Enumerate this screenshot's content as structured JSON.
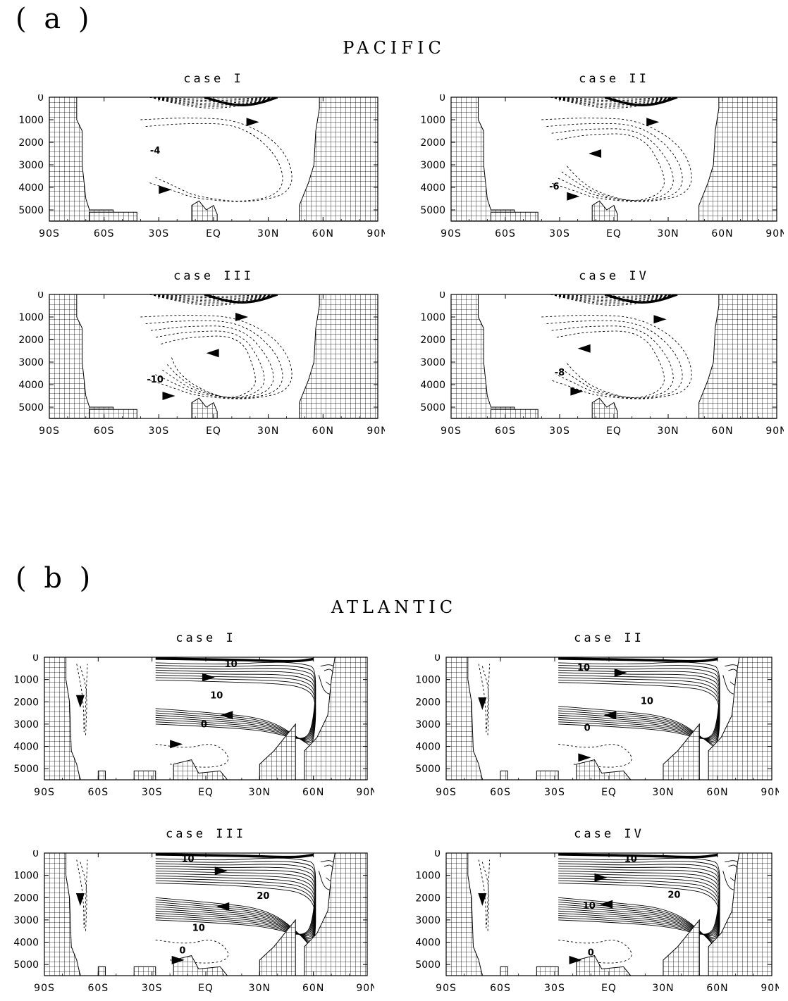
{
  "sections": [
    {
      "label": "( a )",
      "title": "PACIFIC"
    },
    {
      "label": "( b )",
      "title": "ATLANTIC"
    }
  ],
  "colors": {
    "land_hatch": "#000000",
    "background": "#ffffff",
    "positive_contour": "#000000",
    "negative_contour": "#000000"
  },
  "chart_data": [
    {
      "type": "contour",
      "basin": "PACIFIC",
      "title": "case I",
      "x_ticks": [
        "90S",
        "60S",
        "30S",
        "EQ",
        "30N",
        "60N",
        "90N"
      ],
      "y_ticks": [
        "0",
        "1000",
        "2000",
        "3000",
        "4000",
        "5000"
      ],
      "xlim": [
        -90,
        90
      ],
      "ylim": [
        5500,
        0
      ],
      "contour_labels": [
        {
          "text": "-4",
          "lat": -32,
          "depth": 2500
        }
      ],
      "arrows": [
        {
          "lat": 18,
          "depth": 1100,
          "dir": "right"
        },
        {
          "lat": -30,
          "depth": 4100,
          "dir": "right"
        }
      ]
    },
    {
      "type": "contour",
      "basin": "PACIFIC",
      "title": "case II",
      "x_ticks": [
        "90S",
        "60S",
        "30S",
        "EQ",
        "30N",
        "60N",
        "90N"
      ],
      "y_ticks": [
        "0",
        "1000",
        "2000",
        "3000",
        "4000",
        "5000"
      ],
      "xlim": [
        -90,
        90
      ],
      "ylim": [
        5500,
        0
      ],
      "contour_labels": [
        {
          "text": "-6",
          "lat": -33,
          "depth": 4100
        }
      ],
      "arrows": [
        {
          "lat": 18,
          "depth": 1100,
          "dir": "right"
        },
        {
          "lat": -14,
          "depth": 2500,
          "dir": "left"
        },
        {
          "lat": -26,
          "depth": 4400,
          "dir": "right"
        }
      ]
    },
    {
      "type": "contour",
      "basin": "PACIFIC",
      "title": "case III",
      "x_ticks": [
        "90S",
        "60S",
        "30S",
        "EQ",
        "30N",
        "60N",
        "90N"
      ],
      "y_ticks": [
        "0",
        "1000",
        "2000",
        "3000",
        "4000",
        "5000"
      ],
      "xlim": [
        -90,
        90
      ],
      "ylim": [
        5500,
        0
      ],
      "contour_labels": [
        {
          "text": "-10",
          "lat": -32,
          "depth": 3900
        }
      ],
      "arrows": [
        {
          "lat": 12,
          "depth": 1000,
          "dir": "right"
        },
        {
          "lat": -4,
          "depth": 2600,
          "dir": "left"
        },
        {
          "lat": -28,
          "depth": 4500,
          "dir": "right"
        }
      ]
    },
    {
      "type": "contour",
      "basin": "PACIFIC",
      "title": "case IV",
      "x_ticks": [
        "90S",
        "60S",
        "30S",
        "EQ",
        "30N",
        "60N",
        "90N"
      ],
      "y_ticks": [
        "0",
        "1000",
        "2000",
        "3000",
        "4000",
        "5000"
      ],
      "xlim": [
        -90,
        90
      ],
      "ylim": [
        5500,
        0
      ],
      "contour_labels": [
        {
          "text": "-8",
          "lat": -30,
          "depth": 3600
        }
      ],
      "arrows": [
        {
          "lat": 22,
          "depth": 1100,
          "dir": "right"
        },
        {
          "lat": -20,
          "depth": 2400,
          "dir": "left"
        },
        {
          "lat": -24,
          "depth": 4300,
          "dir": "right"
        }
      ]
    },
    {
      "type": "contour",
      "basin": "ATLANTIC",
      "title": "case I",
      "x_ticks": [
        "90S",
        "60S",
        "30S",
        "EQ",
        "30N",
        "60N",
        "90N"
      ],
      "y_ticks": [
        "0",
        "1000",
        "2000",
        "3000",
        "4000",
        "5000"
      ],
      "xlim": [
        -90,
        90
      ],
      "ylim": [
        5500,
        0
      ],
      "contour_labels": [
        {
          "text": "10",
          "lat": 14,
          "depth": 450
        },
        {
          "text": "10",
          "lat": 6,
          "depth": 1850
        },
        {
          "text": "0",
          "lat": -1,
          "depth": 3150
        }
      ],
      "arrows": [
        {
          "lat": -2,
          "depth": 900,
          "dir": "right"
        },
        {
          "lat": -70,
          "depth": 1700,
          "dir": "down"
        },
        {
          "lat": 8,
          "depth": 2600,
          "dir": "left"
        },
        {
          "lat": -20,
          "depth": 3900,
          "dir": "right"
        }
      ]
    },
    {
      "type": "contour",
      "basin": "ATLANTIC",
      "title": "case II",
      "x_ticks": [
        "90S",
        "60S",
        "30S",
        "EQ",
        "30N",
        "60N",
        "90N"
      ],
      "y_ techs": [],
      "y_ticks": [
        "0",
        "1000",
        "2000",
        "3000",
        "4000",
        "5000"
      ],
      "xlim": [
        -90,
        90
      ],
      "ylim": [
        5500,
        0
      ],
      "contour_labels": [
        {
          "text": "10",
          "lat": -14,
          "depth": 600
        },
        {
          "text": "10",
          "lat": 21,
          "depth": 2100
        },
        {
          "text": "0",
          "lat": -12,
          "depth": 3300
        }
      ],
      "arrows": [
        {
          "lat": 3,
          "depth": 700,
          "dir": "right"
        },
        {
          "lat": -70,
          "depth": 1800,
          "dir": "down"
        },
        {
          "lat": -3,
          "depth": 2600,
          "dir": "left"
        },
        {
          "lat": -17,
          "depth": 4500,
          "dir": "right"
        }
      ]
    },
    {
      "type": "contour",
      "basin": "ATLANTIC",
      "title": "case III",
      "x_ticks": [
        "90S",
        "60S",
        "30S",
        "EQ",
        "30N",
        "60N",
        "90N"
      ],
      "y_ticks": [
        "0",
        "1000",
        "2000",
        "3000",
        "4000",
        "5000"
      ],
      "xlim": [
        -90,
        90
      ],
      "ylim": [
        5500,
        0
      ],
      "contour_labels": [
        {
          "text": "10",
          "lat": -10,
          "depth": 400
        },
        {
          "text": "20",
          "lat": 32,
          "depth": 2050
        },
        {
          "text": "10",
          "lat": -4,
          "depth": 3500
        },
        {
          "text": "0",
          "lat": -13,
          "depth": 4500
        }
      ],
      "arrows": [
        {
          "lat": 5,
          "depth": 800,
          "dir": "right"
        },
        {
          "lat": -70,
          "depth": 1800,
          "dir": "down"
        },
        {
          "lat": 6,
          "depth": 2400,
          "dir": "left"
        },
        {
          "lat": -19,
          "depth": 4800,
          "dir": "right"
        }
      ]
    },
    {
      "type": "contour",
      "basin": "ATLANTIC",
      "title": "case IV",
      "x_ticks": [
        "90S",
        "60S",
        "30S",
        "EQ",
        "30N",
        "60N",
        "90N"
      ],
      "y_ticks": [
        "0",
        "1000",
        "2000",
        "3000",
        "4000",
        "5000"
      ],
      "xlim": [
        -90,
        90
      ],
      "ylim": [
        5500,
        0
      ],
      "contour_labels": [
        {
          "text": "10",
          "lat": 12,
          "depth": 400
        },
        {
          "text": "20",
          "lat": 36,
          "depth": 2000
        },
        {
          "text": "10",
          "lat": -11,
          "depth": 2500
        },
        {
          "text": "0",
          "lat": -10,
          "depth": 4600
        }
      ],
      "arrows": [
        {
          "lat": -8,
          "depth": 1100,
          "dir": "right"
        },
        {
          "lat": -70,
          "depth": 1800,
          "dir": "down"
        },
        {
          "lat": -5,
          "depth": 2300,
          "dir": "left"
        },
        {
          "lat": -22,
          "depth": 4800,
          "dir": "right"
        }
      ]
    }
  ]
}
